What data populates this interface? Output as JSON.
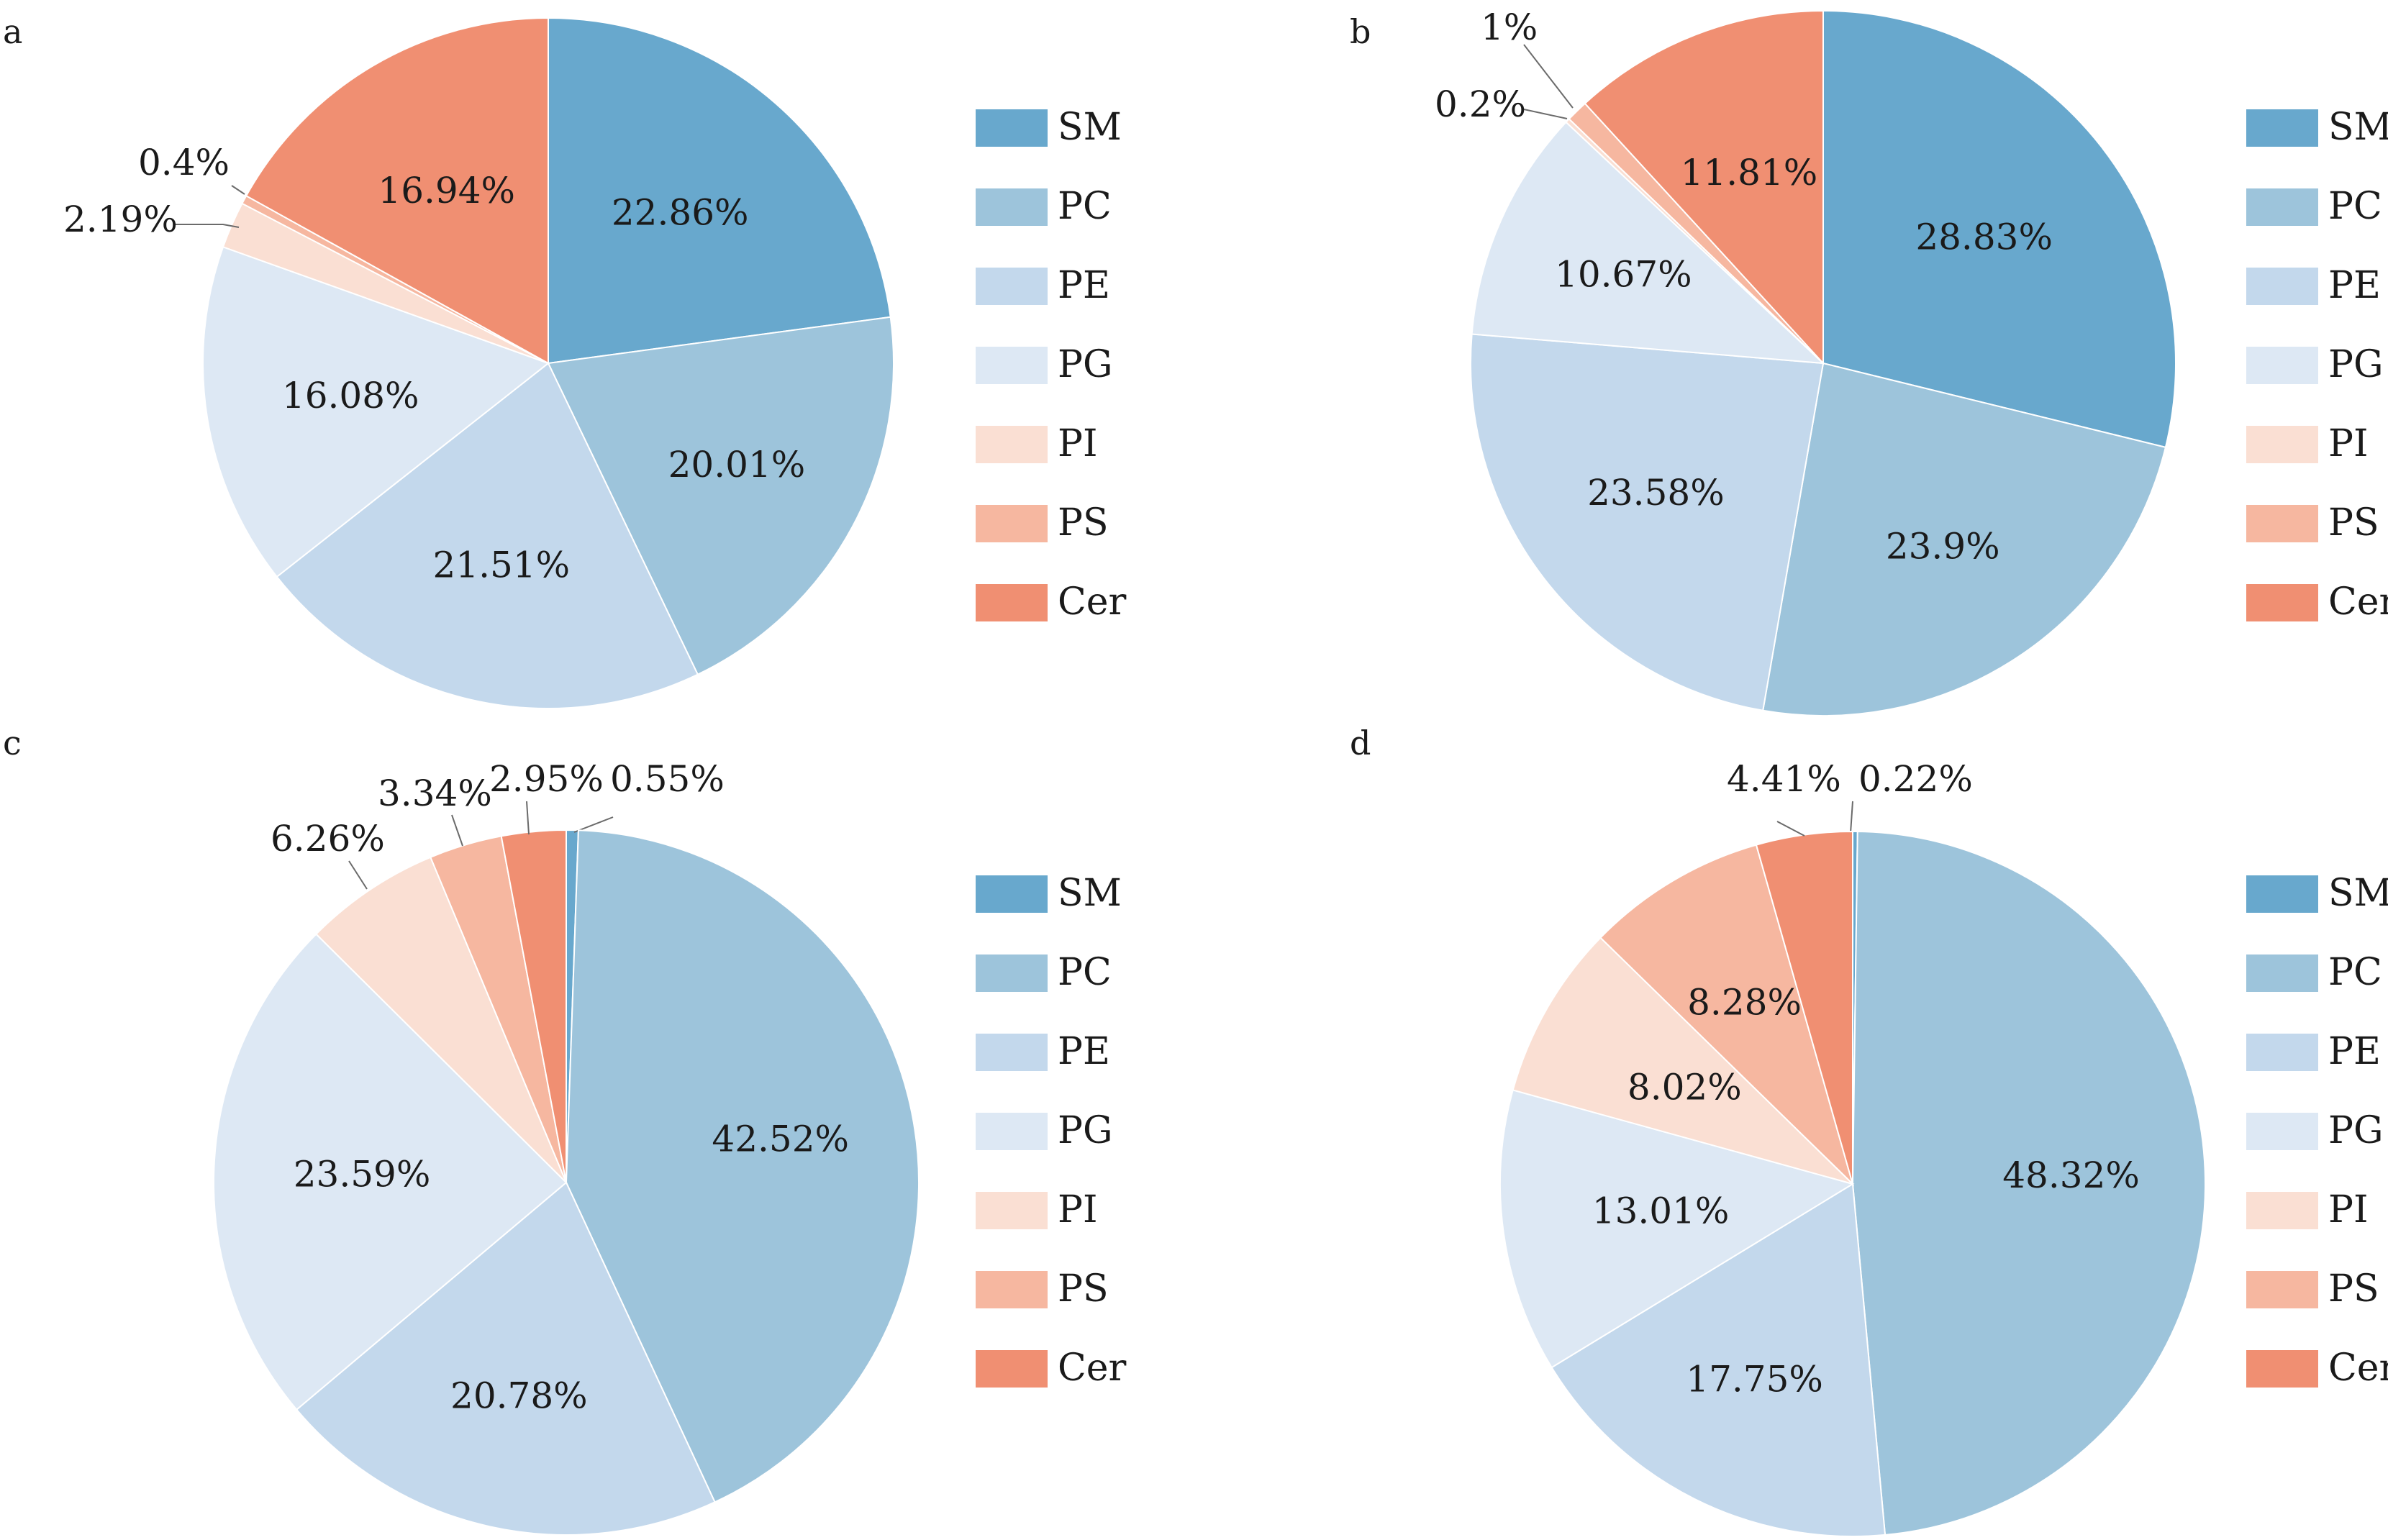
{
  "figure": {
    "legend_categories": [
      "SM",
      "PC",
      "PE",
      "PG",
      "PI",
      "PS",
      "Cer"
    ],
    "colors": {
      "SM": "#68a8cd",
      "PC": "#9dc4db",
      "PE": "#c3d8ec",
      "PG": "#dde8f4",
      "PI": "#fadfd3",
      "PS": "#f6b7a0",
      "Cer": "#f08f72"
    }
  },
  "chart_data": [
    {
      "type": "pie",
      "panel": "a",
      "categories": [
        "SM",
        "PC",
        "PE",
        "PG",
        "PI",
        "PS",
        "Cer"
      ],
      "values": [
        22.86,
        20.01,
        21.51,
        16.08,
        2.19,
        0.4,
        16.94
      ],
      "labels": [
        "22.86%",
        "20.01%",
        "21.51%",
        "16.08%",
        "2.19%",
        "0.4%",
        "16.94%"
      ],
      "legend": "right"
    },
    {
      "type": "pie",
      "panel": "b",
      "categories": [
        "SM",
        "PC",
        "PE",
        "PG",
        "PI",
        "PS",
        "Cer"
      ],
      "values": [
        28.83,
        23.9,
        23.58,
        10.67,
        0.2,
        1.0,
        11.81
      ],
      "labels": [
        "28.83%",
        "23.9%",
        "23.58%",
        "10.67%",
        "0.2%",
        "1%",
        "11.81%"
      ],
      "legend": "right"
    },
    {
      "type": "pie",
      "panel": "c",
      "categories": [
        "SM",
        "PC",
        "PE",
        "PG",
        "PI",
        "PS",
        "Cer"
      ],
      "values": [
        0.55,
        42.52,
        20.78,
        23.59,
        6.26,
        3.34,
        2.95
      ],
      "labels": [
        "0.55%",
        "42.52%",
        "20.78%",
        "23.59%",
        "6.26%",
        "3.34%",
        "2.95%"
      ],
      "legend": "right"
    },
    {
      "type": "pie",
      "panel": "d",
      "categories": [
        "SM",
        "PC",
        "PE",
        "PG",
        "PI",
        "PS",
        "Cer"
      ],
      "values": [
        0.22,
        48.32,
        17.75,
        13.01,
        8.02,
        8.28,
        4.41
      ],
      "labels": [
        "0.22%",
        "48.32%",
        "17.75%",
        "13.01%",
        "8.02%",
        "8.28%",
        "4.41%"
      ],
      "legend": "right"
    }
  ]
}
